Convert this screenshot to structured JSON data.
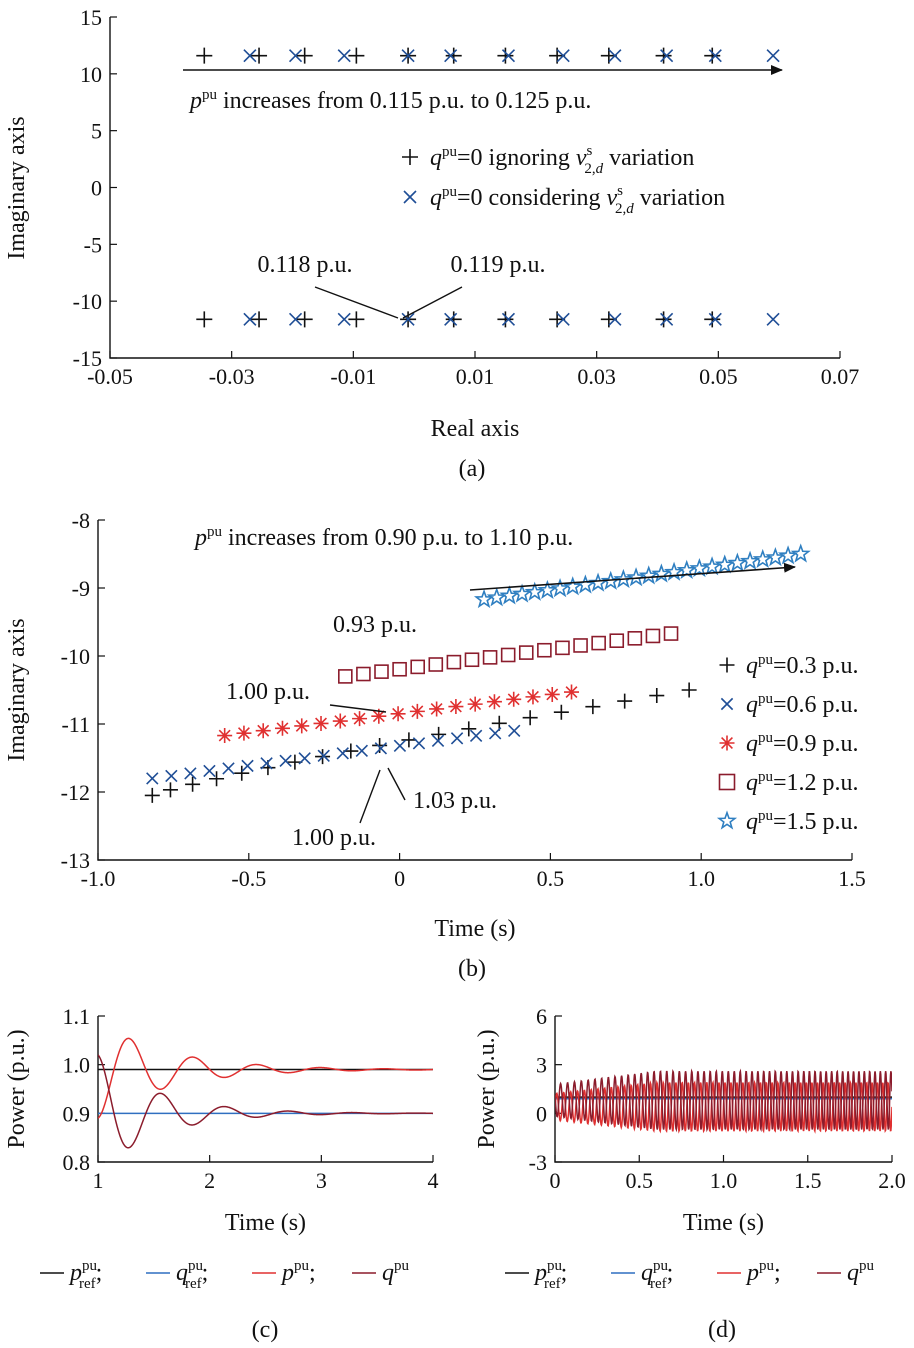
{
  "chart_data": [
    {
      "id": "a",
      "type": "scatter",
      "caption": "(a)",
      "xlabel": "Real axis",
      "ylabel": "Imaginary axis",
      "xlim": [
        -0.05,
        0.07
      ],
      "ylim": [
        -15,
        15
      ],
      "xticks": [
        "-0.05",
        "-0.03",
        "-0.01",
        "0.01",
        "0.03",
        "0.05",
        "0.07"
      ],
      "yticks": [
        "15",
        "10",
        "5",
        "0",
        "-5",
        "-10",
        "-15"
      ],
      "annotation": {
        "var": "p",
        "sup": "pu",
        "text": " increases from 0.115 p.u. to 0.125 p.u."
      },
      "labels": {
        "left": "0.118 p.u.",
        "right": "0.119 p.u."
      },
      "legend": [
        {
          "marker": "+",
          "pre": "q",
          "sup": "pu",
          "text": "=0 ignoring ",
          "v": "v",
          "vsup": "s",
          "vsub": "2,",
          "vsubd": "d",
          "post": " variation"
        },
        {
          "marker": "×",
          "pre": "q",
          "sup": "pu",
          "text": "=0 considering ",
          "v": "v",
          "vsup": "s",
          "vsub": "2,",
          "vsubd": "d",
          "post": " variation"
        }
      ],
      "series": [
        {
          "marker": "plus",
          "color": "#111111",
          "x": [
            -0.0345,
            -0.0255,
            -0.018,
            -0.0095,
            -0.001,
            0.0065,
            0.015,
            0.0235,
            0.032,
            0.041,
            0.049
          ],
          "y_pos": 11.6,
          "y_neg": -11.6
        },
        {
          "marker": "x",
          "color": "#1f4e96",
          "x": [
            -0.027,
            -0.0195,
            -0.0115,
            -0.001,
            0.006,
            0.0155,
            0.0245,
            0.033,
            0.0415,
            0.0495,
            0.059
          ],
          "y_pos": 11.6,
          "y_neg": -11.6
        }
      ]
    },
    {
      "id": "b",
      "type": "scatter",
      "caption": "(b)",
      "xlabel": "Time (s)",
      "ylabel": "Imaginary axis",
      "xlim": [
        -1.0,
        1.5
      ],
      "ylim": [
        -13,
        -8
      ],
      "xticks": [
        "-1.0",
        "-0.5",
        "0",
        "0.5",
        "1.0",
        "1.5"
      ],
      "yticks": [
        "-8",
        "-9",
        "-10",
        "-11",
        "-12",
        "-13"
      ],
      "annotation": {
        "var": "p",
        "sup": "pu",
        "text": " increases from 0.90 p.u. to 1.10 p.u."
      },
      "labels": [
        "0.93 p.u.",
        "1.00 p.u.",
        "1.00 p.u.",
        "1.03 p.u."
      ],
      "legend": [
        {
          "marker": "+",
          "pre": "q",
          "sup": "pu",
          "text": "=0.3 p.u."
        },
        {
          "marker": "×",
          "pre": "q",
          "sup": "pu",
          "text": "=0.6 p.u."
        },
        {
          "marker": "*",
          "pre": "q",
          "sup": "pu",
          "text": "=0.9 p.u."
        },
        {
          "marker": "□",
          "pre": "q",
          "sup": "pu",
          "text": "=1.2 p.u."
        },
        {
          "marker": "☆",
          "pre": "q",
          "sup": "pu",
          "text": "=1.5 p.u."
        }
      ],
      "series": [
        {
          "name": "q=0.3",
          "marker": "plus",
          "color": "#111111",
          "x0": -0.82,
          "x1": 0.96,
          "y0": -12.05,
          "y1": -10.5,
          "n": 20
        },
        {
          "name": "q=0.6",
          "marker": "x",
          "color": "#1f4e96",
          "x0": -0.82,
          "x1": 0.38,
          "y0": -11.8,
          "y1": -11.1,
          "n": 20
        },
        {
          "name": "q=0.9",
          "marker": "star",
          "color": "#e03030",
          "x0": -0.58,
          "x1": 0.57,
          "y0": -11.17,
          "y1": -10.53,
          "n": 19
        },
        {
          "name": "q=1.2",
          "marker": "square",
          "color": "#8b1c2c",
          "x0": -0.18,
          "x1": 0.9,
          "y0": -10.3,
          "y1": -9.67,
          "n": 19
        },
        {
          "name": "q=1.5",
          "marker": "pentagram",
          "color": "#2f7fc1",
          "x0": 0.28,
          "x1": 1.33,
          "y0": -9.17,
          "y1": -8.5,
          "n": 26
        }
      ]
    },
    {
      "id": "c",
      "type": "line",
      "caption": "(c)",
      "xlabel": "Time (s)",
      "ylabel": "Power (p.u.)",
      "xlim": [
        1,
        4
      ],
      "ylim": [
        0.8,
        1.1
      ],
      "xticks": [
        "1",
        "2",
        "3",
        "4"
      ],
      "yticks": [
        "1.1",
        "1.0",
        "0.9",
        "0.8"
      ],
      "legend": [
        {
          "color": "#111111",
          "var": "p",
          "sup": "pu",
          "sub": "ref",
          "sep": ";"
        },
        {
          "color": "#2f6fc0",
          "var": "q",
          "sup": "pu",
          "sub": "ref",
          "sep": ";"
        },
        {
          "color": "#e03030",
          "var": "p",
          "sup": "pu",
          "sub": "",
          "sep": ";"
        },
        {
          "color": "#8b1c2c",
          "var": "q",
          "sup": "pu",
          "sub": "",
          "sep": ""
        }
      ],
      "series": [
        {
          "name": "pref",
          "color": "#111111",
          "const": 0.99
        },
        {
          "name": "qref",
          "color": "#2f6fc0",
          "const": 0.9
        },
        {
          "name": "p",
          "color": "#e03030",
          "final": 0.99,
          "amp": 0.1,
          "decay": 1.6,
          "freq": 1.75,
          "phase": 3.14,
          "t0": 1.0
        },
        {
          "name": "q",
          "color": "#8b1c2c",
          "final": 0.9,
          "amp": 0.12,
          "decay": 1.9,
          "freq": 1.75,
          "phase": 0.0,
          "t0": 1.0
        }
      ]
    },
    {
      "id": "d",
      "type": "line",
      "caption": "(d)",
      "xlabel": "Time (s)",
      "ylabel": "Power (p.u.)",
      "xlim": [
        0,
        2.0
      ],
      "ylim": [
        -3,
        6
      ],
      "xticks": [
        "0",
        "0.5",
        "1.0",
        "1.5",
        "2.0"
      ],
      "yticks": [
        "6",
        "3",
        "0",
        "-3"
      ],
      "legend": [
        {
          "color": "#111111",
          "var": "p",
          "sup": "pu",
          "sub": "ref",
          "sep": ";"
        },
        {
          "color": "#2f6fc0",
          "var": "q",
          "sup": "pu",
          "sub": "ref",
          "sep": ";"
        },
        {
          "color": "#e03030",
          "var": "p",
          "sup": "pu",
          "sub": "",
          "sep": ";"
        },
        {
          "color": "#8b1c2c",
          "var": "q",
          "sup": "pu",
          "sub": "",
          "sep": ""
        }
      ],
      "series": [
        {
          "name": "pref",
          "color": "#111111",
          "const": 1.0
        },
        {
          "name": "qref",
          "color": "#2f6fc0",
          "const": 0.9
        },
        {
          "name": "p",
          "color": "#e03030",
          "center": 0.4,
          "amp": 1.5,
          "freq": 24.0,
          "chirp": 8.0
        },
        {
          "name": "q",
          "color": "#8b1c2c",
          "center": 0.8,
          "amp": 1.8,
          "freq": 24.0,
          "chirp": 8.0
        }
      ]
    }
  ]
}
